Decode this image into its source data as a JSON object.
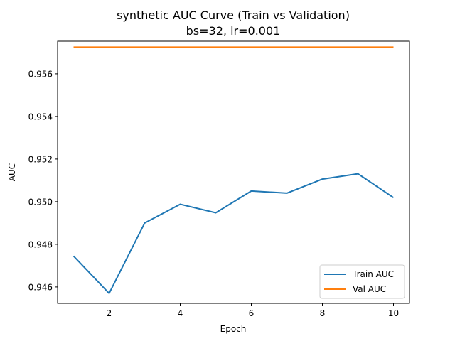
{
  "chart_data": {
    "type": "line",
    "title": "synthetic AUC Curve (Train vs Validation)",
    "subtitle": "bs=32, lr=0.001",
    "xlabel": "Epoch",
    "ylabel": "AUC",
    "x": [
      1,
      2,
      3,
      4,
      5,
      6,
      7,
      8,
      9,
      10
    ],
    "xlim": [
      0.55,
      10.45
    ],
    "ylim": [
      0.94523,
      0.95753
    ],
    "xticks": [
      2,
      4,
      6,
      8,
      10
    ],
    "yticks": [
      0.946,
      0.948,
      0.95,
      0.952,
      0.954,
      0.956
    ],
    "ytick_labels": [
      "0.946",
      "0.948",
      "0.950",
      "0.952",
      "0.954",
      "0.956"
    ],
    "grid": false,
    "legend_position": "lower-right",
    "series": [
      {
        "name": "Train AUC",
        "color": "#1f77b4",
        "values": [
          0.94745,
          0.9457,
          0.949,
          0.94988,
          0.94948,
          0.9505,
          0.9504,
          0.95106,
          0.95131,
          0.95019
        ]
      },
      {
        "name": "Val AUC",
        "color": "#ff7f0e",
        "values": [
          0.95725,
          0.95725,
          0.95725,
          0.95725,
          0.95725,
          0.95725,
          0.95725,
          0.95725,
          0.95725,
          0.95725
        ]
      }
    ]
  }
}
